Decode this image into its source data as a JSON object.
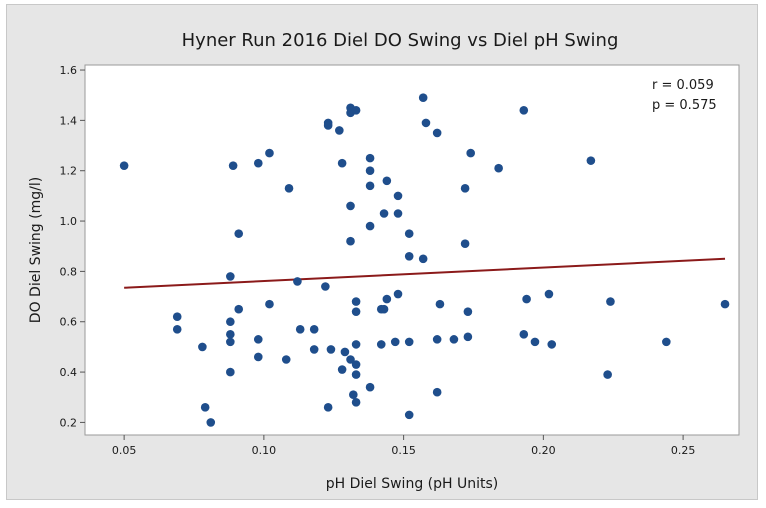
{
  "chart_data": {
    "type": "scatter",
    "title": "Hyner Run 2016 Diel DO Swing vs Diel pH Swing",
    "xlabel": "pH Diel Swing (pH Units)",
    "ylabel": "DO Diel Swing (mg/l)",
    "xlim": [
      0.036,
      0.27
    ],
    "ylim": [
      0.15,
      1.62
    ],
    "xticks": [
      "0.05",
      "0.10",
      "0.15",
      "0.20",
      "0.25"
    ],
    "yticks": [
      "0.2",
      "0.4",
      "0.6",
      "0.8",
      "1.0",
      "1.2",
      "1.4",
      "1.6"
    ],
    "grid": false,
    "annotations": {
      "r": "r = 0.059",
      "p": "p = 0.575"
    },
    "fit_line": {
      "x": [
        0.05,
        0.265
      ],
      "y": [
        0.735,
        0.85
      ]
    },
    "colors": {
      "points": "#1f4e8c",
      "fit_line": "#8b1a1a",
      "background": "#e6e6e6",
      "plot_area": "#ffffff"
    },
    "points": [
      [
        0.05,
        1.22
      ],
      [
        0.069,
        0.62
      ],
      [
        0.069,
        0.57
      ],
      [
        0.078,
        0.5
      ],
      [
        0.079,
        0.26
      ],
      [
        0.081,
        0.2
      ],
      [
        0.088,
        0.78
      ],
      [
        0.088,
        0.6
      ],
      [
        0.088,
        0.55
      ],
      [
        0.088,
        0.52
      ],
      [
        0.088,
        0.4
      ],
      [
        0.089,
        1.22
      ],
      [
        0.091,
        0.95
      ],
      [
        0.091,
        0.65
      ],
      [
        0.098,
        0.53
      ],
      [
        0.098,
        0.46
      ],
      [
        0.098,
        1.23
      ],
      [
        0.102,
        1.27
      ],
      [
        0.102,
        0.67
      ],
      [
        0.108,
        0.45
      ],
      [
        0.109,
        1.13
      ],
      [
        0.112,
        0.76
      ],
      [
        0.113,
        0.57
      ],
      [
        0.118,
        0.57
      ],
      [
        0.118,
        0.49
      ],
      [
        0.122,
        0.74
      ],
      [
        0.123,
        1.39
      ],
      [
        0.123,
        1.38
      ],
      [
        0.123,
        0.26
      ],
      [
        0.124,
        0.49
      ],
      [
        0.127,
        1.36
      ],
      [
        0.128,
        1.23
      ],
      [
        0.128,
        0.41
      ],
      [
        0.129,
        0.48
      ],
      [
        0.131,
        1.45
      ],
      [
        0.131,
        1.43
      ],
      [
        0.131,
        1.06
      ],
      [
        0.131,
        0.92
      ],
      [
        0.131,
        0.45
      ],
      [
        0.132,
        0.31
      ],
      [
        0.133,
        1.44
      ],
      [
        0.133,
        0.68
      ],
      [
        0.133,
        0.64
      ],
      [
        0.133,
        0.51
      ],
      [
        0.133,
        0.43
      ],
      [
        0.133,
        0.39
      ],
      [
        0.133,
        0.28
      ],
      [
        0.138,
        1.25
      ],
      [
        0.138,
        1.2
      ],
      [
        0.138,
        1.14
      ],
      [
        0.138,
        0.98
      ],
      [
        0.138,
        0.34
      ],
      [
        0.142,
        0.65
      ],
      [
        0.142,
        0.51
      ],
      [
        0.143,
        1.03
      ],
      [
        0.143,
        0.65
      ],
      [
        0.144,
        1.16
      ],
      [
        0.144,
        0.69
      ],
      [
        0.147,
        0.52
      ],
      [
        0.148,
        1.1
      ],
      [
        0.148,
        1.03
      ],
      [
        0.148,
        0.71
      ],
      [
        0.152,
        0.95
      ],
      [
        0.152,
        0.86
      ],
      [
        0.152,
        0.52
      ],
      [
        0.152,
        0.23
      ],
      [
        0.157,
        1.49
      ],
      [
        0.157,
        0.85
      ],
      [
        0.158,
        1.39
      ],
      [
        0.162,
        1.35
      ],
      [
        0.162,
        0.53
      ],
      [
        0.162,
        0.32
      ],
      [
        0.163,
        0.67
      ],
      [
        0.168,
        0.53
      ],
      [
        0.172,
        1.13
      ],
      [
        0.172,
        0.91
      ],
      [
        0.173,
        0.64
      ],
      [
        0.173,
        0.54
      ],
      [
        0.174,
        1.27
      ],
      [
        0.184,
        1.21
      ],
      [
        0.193,
        1.44
      ],
      [
        0.193,
        0.55
      ],
      [
        0.194,
        0.69
      ],
      [
        0.197,
        0.52
      ],
      [
        0.202,
        0.71
      ],
      [
        0.203,
        0.51
      ],
      [
        0.217,
        1.24
      ],
      [
        0.223,
        0.39
      ],
      [
        0.224,
        0.68
      ],
      [
        0.244,
        0.52
      ],
      [
        0.265,
        0.67
      ]
    ]
  }
}
